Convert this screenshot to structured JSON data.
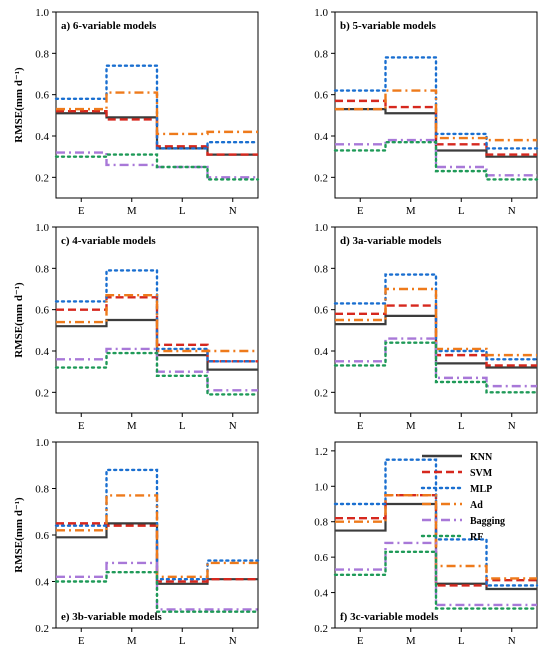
{
  "chart_data": [
    {
      "type": "line",
      "title": "a) 6-variable models",
      "title_position": "top-left",
      "ylabel": "RMSE(mm d⁻¹)",
      "xlabel": "",
      "categories": [
        "E",
        "M",
        "L",
        "N"
      ],
      "ylim": [
        0.1,
        1.0
      ],
      "yticks": [
        0.2,
        0.4,
        0.6,
        0.8,
        1.0
      ],
      "yticklabels": [
        "0.2",
        "0.4",
        "0.6",
        "0.8",
        "1.0"
      ],
      "series": [
        {
          "name": "KNN",
          "values": [
            0.51,
            0.49,
            0.34,
            0.31
          ]
        },
        {
          "name": "SVM",
          "values": [
            0.52,
            0.48,
            0.35,
            0.31
          ]
        },
        {
          "name": "MLP",
          "values": [
            0.58,
            0.74,
            0.34,
            0.37
          ]
        },
        {
          "name": "Ad",
          "values": [
            0.53,
            0.61,
            0.41,
            0.42
          ]
        },
        {
          "name": "Bagging",
          "values": [
            0.32,
            0.26,
            0.25,
            0.2
          ]
        },
        {
          "name": "RF",
          "values": [
            0.3,
            0.31,
            0.25,
            0.19
          ]
        }
      ]
    },
    {
      "type": "line",
      "title": "b) 5-variable models",
      "title_position": "top-left",
      "ylabel": "",
      "xlabel": "",
      "categories": [
        "E",
        "M",
        "L",
        "N"
      ],
      "ylim": [
        0.1,
        1.0
      ],
      "yticks": [
        0.2,
        0.4,
        0.6,
        0.8,
        1.0
      ],
      "yticklabels": [
        "0.2",
        "0.4",
        "0.6",
        "0.8",
        "1.0"
      ],
      "series": [
        {
          "name": "KNN",
          "values": [
            0.53,
            0.51,
            0.33,
            0.3
          ]
        },
        {
          "name": "SVM",
          "values": [
            0.57,
            0.54,
            0.36,
            0.31
          ]
        },
        {
          "name": "MLP",
          "values": [
            0.62,
            0.78,
            0.41,
            0.34
          ]
        },
        {
          "name": "Ad",
          "values": [
            0.53,
            0.62,
            0.39,
            0.38
          ]
        },
        {
          "name": "Bagging",
          "values": [
            0.36,
            0.38,
            0.25,
            0.21
          ]
        },
        {
          "name": "RF",
          "values": [
            0.33,
            0.37,
            0.23,
            0.19
          ]
        }
      ]
    },
    {
      "type": "line",
      "title": "c) 4-variable models",
      "title_position": "top-left",
      "ylabel": "RMSE(mm d⁻¹)",
      "xlabel": "",
      "categories": [
        "E",
        "M",
        "L",
        "N"
      ],
      "ylim": [
        0.1,
        1.0
      ],
      "yticks": [
        0.2,
        0.4,
        0.6,
        0.8,
        1.0
      ],
      "yticklabels": [
        "0.2",
        "0.4",
        "0.6",
        "0.8",
        "1.0"
      ],
      "series": [
        {
          "name": "KNN",
          "values": [
            0.52,
            0.55,
            0.38,
            0.31
          ]
        },
        {
          "name": "SVM",
          "values": [
            0.6,
            0.66,
            0.43,
            0.35
          ]
        },
        {
          "name": "MLP",
          "values": [
            0.64,
            0.79,
            0.41,
            0.35
          ]
        },
        {
          "name": "Ad",
          "values": [
            0.54,
            0.67,
            0.4,
            0.4
          ]
        },
        {
          "name": "Bagging",
          "values": [
            0.36,
            0.41,
            0.3,
            0.21
          ]
        },
        {
          "name": "RF",
          "values": [
            0.32,
            0.39,
            0.28,
            0.19
          ]
        }
      ]
    },
    {
      "type": "line",
      "title": "d) 3a-variable models",
      "title_position": "top-left",
      "ylabel": "",
      "xlabel": "",
      "categories": [
        "E",
        "M",
        "L",
        "N"
      ],
      "ylim": [
        0.1,
        1.0
      ],
      "yticks": [
        0.2,
        0.4,
        0.6,
        0.8,
        1.0
      ],
      "yticklabels": [
        "0.2",
        "0.4",
        "0.6",
        "0.8",
        "1.0"
      ],
      "series": [
        {
          "name": "KNN",
          "values": [
            0.53,
            0.57,
            0.34,
            0.32
          ]
        },
        {
          "name": "SVM",
          "values": [
            0.58,
            0.62,
            0.38,
            0.33
          ]
        },
        {
          "name": "MLP",
          "values": [
            0.63,
            0.77,
            0.4,
            0.36
          ]
        },
        {
          "name": "Ad",
          "values": [
            0.55,
            0.7,
            0.41,
            0.38
          ]
        },
        {
          "name": "Bagging",
          "values": [
            0.35,
            0.46,
            0.27,
            0.23
          ]
        },
        {
          "name": "RF",
          "values": [
            0.33,
            0.44,
            0.25,
            0.2
          ]
        }
      ]
    },
    {
      "type": "line",
      "title": "e) 3b-variable models",
      "title_position": "bottom-left",
      "ylabel": "RMSE(mm d⁻¹)",
      "xlabel": "",
      "categories": [
        "E",
        "M",
        "L",
        "N"
      ],
      "ylim": [
        0.2,
        1.0
      ],
      "yticks": [
        0.2,
        0.4,
        0.6,
        0.8,
        1.0
      ],
      "yticklabels": [
        "0.2",
        "0.4",
        "0.6",
        "0.8",
        "1.0"
      ],
      "series": [
        {
          "name": "KNN",
          "values": [
            0.59,
            0.65,
            0.39,
            0.41
          ]
        },
        {
          "name": "SVM",
          "values": [
            0.65,
            0.64,
            0.4,
            0.41
          ]
        },
        {
          "name": "MLP",
          "values": [
            0.64,
            0.88,
            0.41,
            0.49
          ]
        },
        {
          "name": "Ad",
          "values": [
            0.62,
            0.77,
            0.42,
            0.48
          ]
        },
        {
          "name": "Bagging",
          "values": [
            0.42,
            0.48,
            0.28,
            0.28
          ]
        },
        {
          "name": "RF",
          "values": [
            0.4,
            0.44,
            0.27,
            0.27
          ]
        }
      ]
    },
    {
      "type": "line",
      "title": "f) 3c-variable models",
      "title_position": "bottom-left",
      "ylabel": "",
      "xlabel": "",
      "categories": [
        "E",
        "M",
        "L",
        "N"
      ],
      "ylim": [
        0.2,
        1.25
      ],
      "yticks": [
        0.2,
        0.4,
        0.6,
        0.8,
        1.0,
        1.2
      ],
      "yticklabels": [
        "0.2",
        "0.4",
        "0.6",
        "0.8",
        "1.0",
        "1.2"
      ],
      "legend": "top-right",
      "series": [
        {
          "name": "KNN",
          "values": [
            0.75,
            0.9,
            0.45,
            0.42
          ]
        },
        {
          "name": "SVM",
          "values": [
            0.82,
            0.95,
            0.44,
            0.47
          ]
        },
        {
          "name": "MLP",
          "values": [
            0.9,
            1.15,
            0.7,
            0.44
          ]
        },
        {
          "name": "Ad",
          "values": [
            0.8,
            0.95,
            0.55,
            0.48
          ]
        },
        {
          "name": "Bagging",
          "values": [
            0.53,
            0.68,
            0.33,
            0.33
          ]
        },
        {
          "name": "RF",
          "values": [
            0.5,
            0.63,
            0.31,
            0.31
          ]
        }
      ]
    }
  ],
  "series_styles": {
    "KNN": {
      "color": "#3c3c3c",
      "dash": "solid"
    },
    "SVM": {
      "color": "#d6281e",
      "dash": "dashed"
    },
    "MLP": {
      "color": "#1a6fd0",
      "dash": "dotted"
    },
    "Ad": {
      "color": "#ee7a1b",
      "dash": "dash-dot"
    },
    "Bagging": {
      "color": "#a878d8",
      "dash": "dash-dot"
    },
    "RF": {
      "color": "#1f9a58",
      "dash": "dotted"
    }
  }
}
